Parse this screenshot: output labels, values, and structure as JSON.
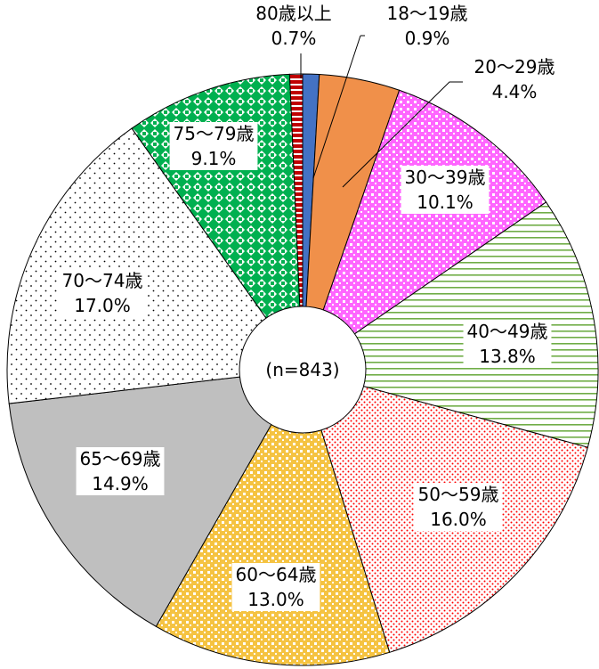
{
  "chart_data": {
    "type": "pie",
    "categories": [
      "18〜19歳",
      "20〜29歳",
      "30〜39歳",
      "40〜49歳",
      "50〜59歳",
      "60〜64歳",
      "65〜69歳",
      "70〜74歳",
      "75〜79歳",
      "80歳以上"
    ],
    "values": [
      0.9,
      4.4,
      10.1,
      13.8,
      16.0,
      13.0,
      14.9,
      17.0,
      9.1,
      0.7
    ],
    "value_labels": [
      "0.9%",
      "4.4%",
      "10.1%",
      "13.8%",
      "16.0%",
      "13.0%",
      "14.9%",
      "17.0%",
      "9.1%",
      "0.7%"
    ],
    "colors": [
      "#4472c4",
      "#f0904a",
      "#ff66ff",
      "#70ad47",
      "#ff0000",
      "#f5c342",
      "#bfbfbf",
      "#000000",
      "#00b050",
      "#c00000"
    ],
    "annotation": "(n=843)"
  }
}
